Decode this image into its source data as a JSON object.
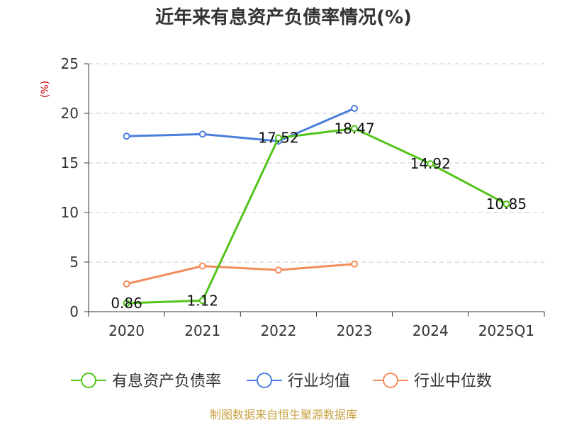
{
  "chart_data": {
    "type": "line",
    "title": "近年来有息资产负债率情况(%)",
    "ylabel": "(%)",
    "xlabel": "",
    "ylim": [
      0,
      25
    ],
    "yticks": [
      0,
      5,
      10,
      15,
      20,
      25
    ],
    "categories": [
      "2020",
      "2021",
      "2022",
      "2023",
      "2024",
      "2025Q1"
    ],
    "grid": true,
    "legend_position": "bottom",
    "series": [
      {
        "name": "有息资产负债率",
        "color": "#52c41a",
        "values": [
          0.86,
          1.12,
          17.52,
          18.47,
          14.92,
          10.85
        ],
        "labels": [
          "0.86",
          "1.12",
          "17.52",
          "18.47",
          "14.92",
          "10.85"
        ]
      },
      {
        "name": "行业均值",
        "color": "#4a7fdb",
        "values": [
          17.7,
          17.9,
          17.2,
          20.5,
          null,
          null
        ]
      },
      {
        "name": "行业中位数",
        "color": "#f28c5b",
        "values": [
          2.8,
          4.6,
          4.2,
          4.8,
          null,
          null
        ]
      }
    ]
  },
  "source": "制图数据来自恒生聚源数据库"
}
